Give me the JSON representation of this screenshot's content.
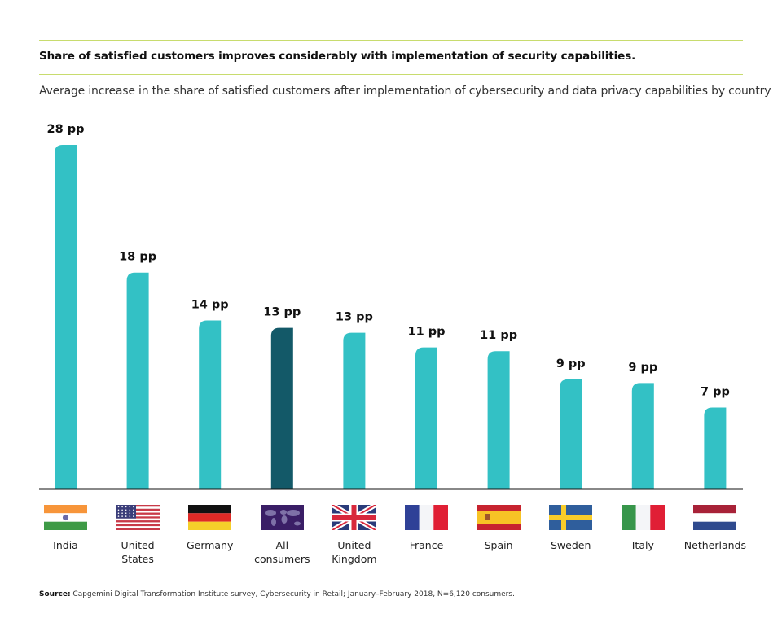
{
  "header": {
    "title": "Share of satisfied customers improves considerably with implementation of security capabilities.",
    "subtitle": "Average increase in the share of satisfied customers after implementation of cybersecurity and data privacy capabilities by country"
  },
  "chart_data": {
    "type": "bar",
    "title": "Share of satisfied customers improves considerably with implementation of security capabilities.",
    "subtitle": "Average increase in the share of satisfied customers after implementation of cybersecurity and data privacy capabilities by country",
    "xlabel": "",
    "ylabel": "",
    "unit": "pp",
    "ylim": [
      0,
      28
    ],
    "grid": false,
    "categories": [
      "India",
      "United States",
      "Germany",
      "All consumers",
      "United Kingdom",
      "France",
      "Spain",
      "Sweden",
      "Italy",
      "Netherlands"
    ],
    "category_lines": [
      [
        "India"
      ],
      [
        "United",
        "States"
      ],
      [
        "Germany"
      ],
      [
        "All",
        "consumers"
      ],
      [
        "United",
        "Kingdom"
      ],
      [
        "France"
      ],
      [
        "Spain"
      ],
      [
        "Sweden"
      ],
      [
        "Italy"
      ],
      [
        "Netherlands"
      ]
    ],
    "values": [
      28,
      17.6,
      13.7,
      13.1,
      12.7,
      11.5,
      11.2,
      8.9,
      8.6,
      6.6
    ],
    "data_labels": [
      "28 pp",
      "18 pp",
      "14 pp",
      "13 pp",
      "13 pp",
      "11 pp",
      "11 pp",
      "9 pp",
      "9 pp",
      "7 pp"
    ],
    "flags": [
      "india-flag",
      "us-flag",
      "germany-flag",
      "world-map",
      "uk-flag",
      "france-flag",
      "spain-flag",
      "sweden-flag",
      "italy-flag",
      "netherlands-flag"
    ],
    "highlight_index": 3,
    "colors": {
      "bar": "#33c1c5",
      "highlight": "#135968",
      "baseline": "#111111",
      "rule": "#c8dc6e"
    }
  },
  "footer": {
    "source_label": "Source:",
    "source_text": " Capgemini Digital Transformation Institute survey, Cybersecurity in Retail; January–February 2018, N=6,120 consumers."
  }
}
